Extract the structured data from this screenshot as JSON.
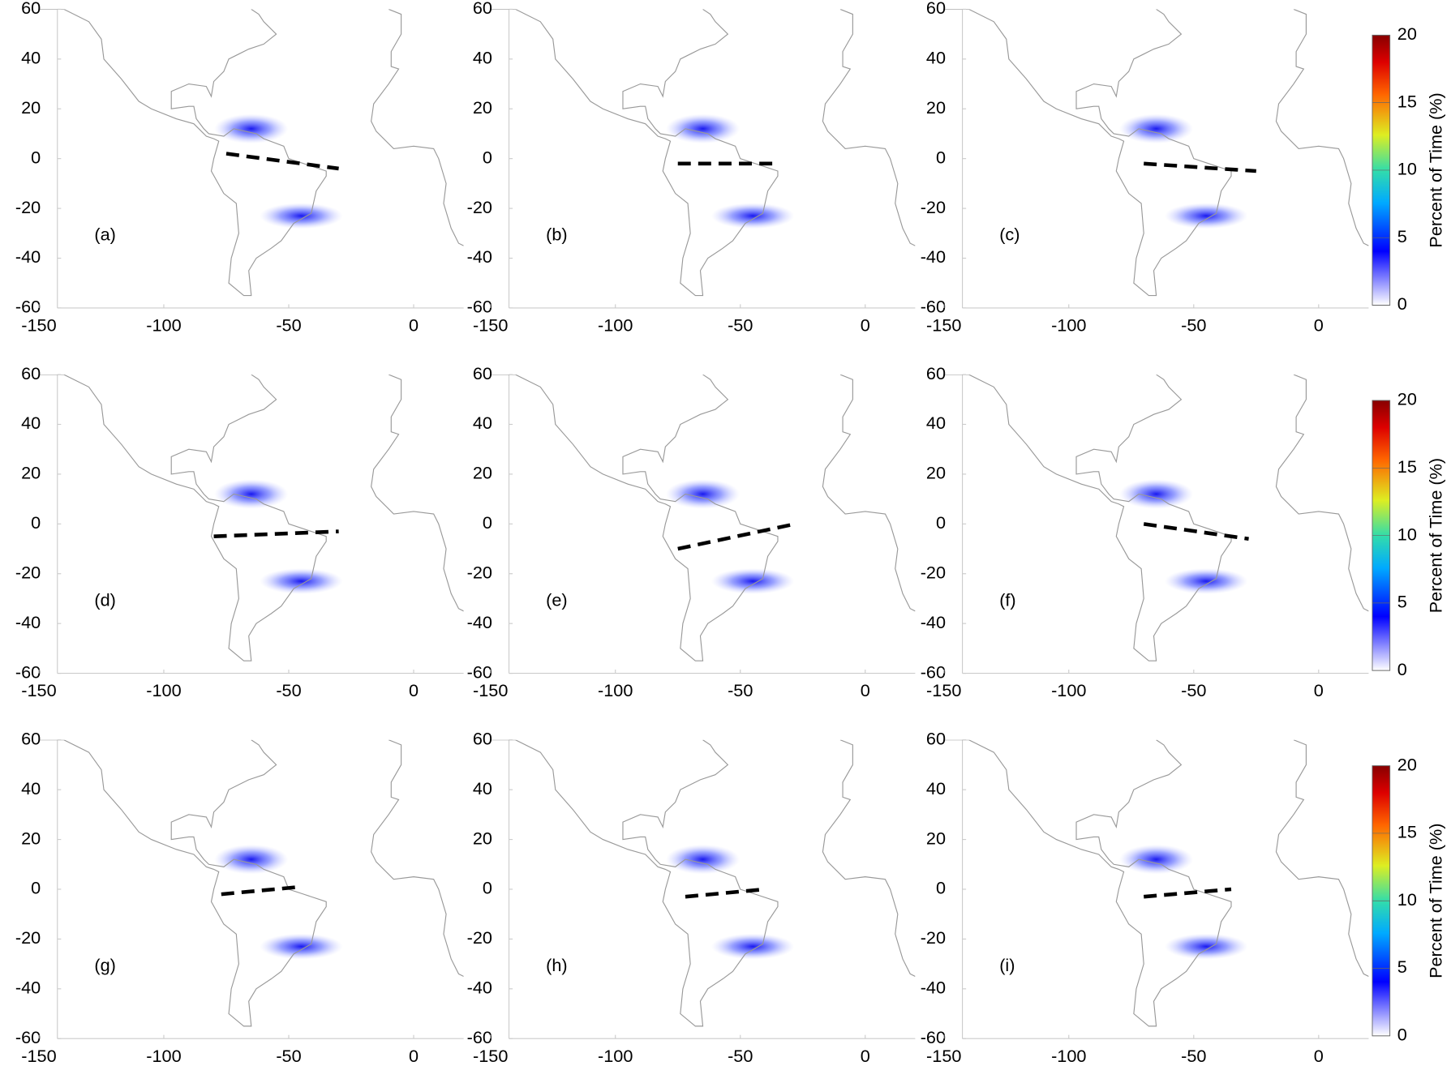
{
  "figure": {
    "xlim": [
      -150,
      20
    ],
    "ylim": [
      -60,
      60
    ],
    "xticks": [
      -150,
      -100,
      -50,
      0
    ],
    "yticks": [
      -60,
      -40,
      -20,
      0,
      20,
      40,
      60
    ],
    "panels": [
      {
        "label": "(a)",
        "dashed_line": {
          "x": [
            -75,
            -30
          ],
          "y": [
            2,
            -4
          ]
        }
      },
      {
        "label": "(b)",
        "dashed_line": {
          "x": [
            -75,
            -35
          ],
          "y": [
            -2,
            -2
          ]
        }
      },
      {
        "label": "(c)",
        "dashed_line": {
          "x": [
            -70,
            -25
          ],
          "y": [
            -2,
            -5
          ]
        }
      },
      {
        "label": "(d)",
        "dashed_line": {
          "x": [
            -80,
            -30
          ],
          "y": [
            -5,
            -3
          ]
        }
      },
      {
        "label": "(e)",
        "dashed_line": {
          "x": [
            -75,
            -28
          ],
          "y": [
            -10,
            0
          ]
        }
      },
      {
        "label": "(f)",
        "dashed_line": {
          "x": [
            -70,
            -28
          ],
          "y": [
            0,
            -6
          ]
        }
      },
      {
        "label": "(g)",
        "dashed_line": {
          "x": [
            -77,
            -45
          ],
          "y": [
            -2,
            1
          ]
        }
      },
      {
        "label": "(h)",
        "dashed_line": {
          "x": [
            -72,
            -40
          ],
          "y": [
            -3,
            0
          ]
        }
      },
      {
        "label": "(i)",
        "dashed_line": {
          "x": [
            -70,
            -35
          ],
          "y": [
            -3,
            0
          ]
        }
      }
    ],
    "colorbar": {
      "label": "Percent of Time (%)",
      "lim": [
        0,
        20
      ],
      "ticks": [
        0,
        5,
        10,
        15,
        20
      ]
    }
  }
}
